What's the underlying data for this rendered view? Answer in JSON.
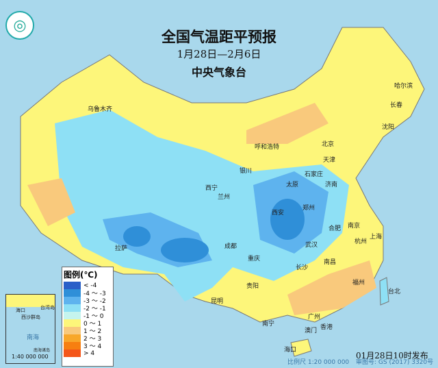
{
  "header": {
    "title": "全国气温距平预报",
    "date_range": "1月28日—2月6日",
    "issuer": "中央气象台"
  },
  "legend": {
    "title": "图例(℃)",
    "items": [
      {
        "label": "< -4",
        "color": "#2b5fc8"
      },
      {
        "label": "-4 ～ -3",
        "color": "#2f8fd8"
      },
      {
        "label": "-3 ～ -2",
        "color": "#5eb3ee"
      },
      {
        "label": "-2 ～ -1",
        "color": "#8ee0f5"
      },
      {
        "label": "-1 ～ 0",
        "color": "#c5f4ee"
      },
      {
        "label": "0 ～ 1",
        "color": "#fdf67a"
      },
      {
        "label": "1 ～ 2",
        "color": "#f9c97c"
      },
      {
        "label": "2 ～ 3",
        "color": "#f8a72a"
      },
      {
        "label": "3 ～ 4",
        "color": "#f77f10"
      },
      {
        "label": "> 4",
        "color": "#f4561a"
      }
    ]
  },
  "inset": {
    "labels": [
      "海口",
      "西沙群岛",
      "台湾岛",
      "南海",
      "南海诸岛"
    ],
    "scale": "1:40 000 000"
  },
  "cities": [
    "乌鲁木齐",
    "呼和浩特",
    "北京",
    "天津",
    "石家庄",
    "太原",
    "济南",
    "银川",
    "西宁",
    "兰州",
    "西安",
    "郑州",
    "合肥",
    "南京",
    "上海",
    "杭州",
    "武汉",
    "长沙",
    "南昌",
    "福州",
    "台北",
    "成都",
    "重庆",
    "贵阳",
    "昆明",
    "拉萨",
    "南宁",
    "广州",
    "香港",
    "澳门",
    "海口",
    "哈尔滨",
    "长春",
    "沈阳"
  ],
  "footer": {
    "scale": "比例尺 1:20 000 000",
    "approval": "审图号: GS (2017) 3320号",
    "published": "01月28日10时发布"
  }
}
